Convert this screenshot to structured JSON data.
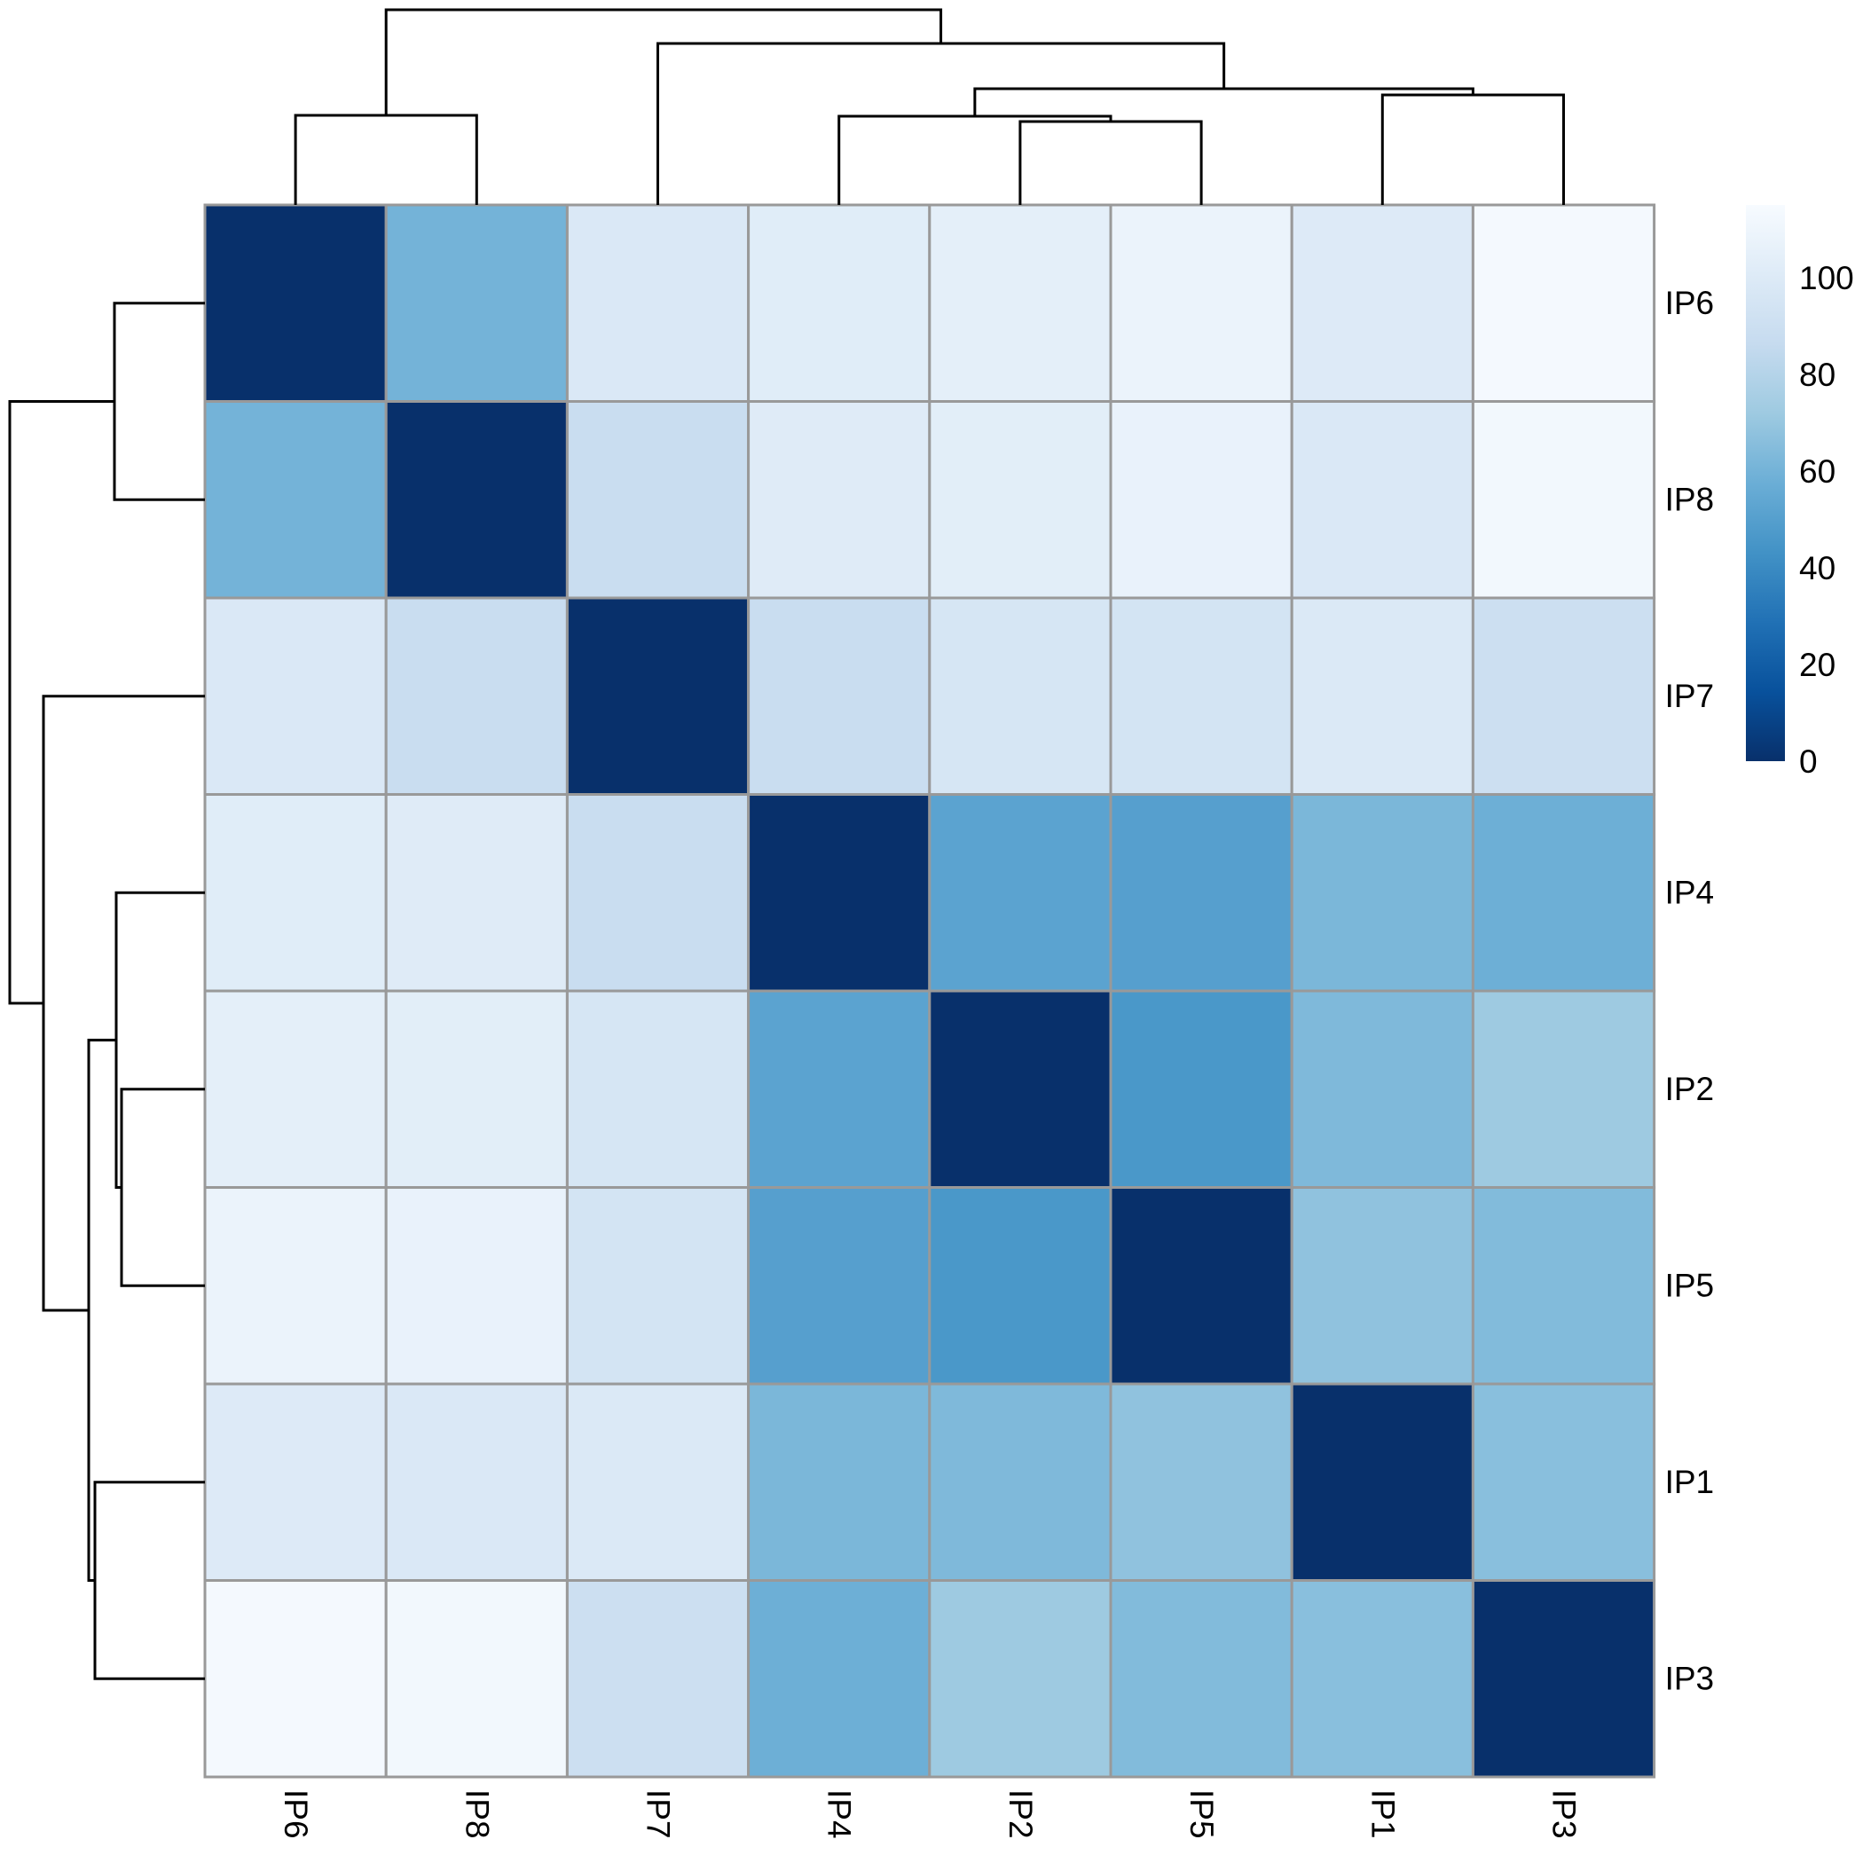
{
  "chart_data": {
    "type": "heatmap",
    "title": "",
    "xlabel": "",
    "ylabel": "",
    "columns": [
      "IP6",
      "IP8",
      "IP7",
      "IP4",
      "IP2",
      "IP5",
      "IP1",
      "IP3"
    ],
    "rows": [
      "IP6",
      "IP8",
      "IP7",
      "IP4",
      "IP2",
      "IP5",
      "IP1",
      "IP3"
    ],
    "values": [
      [
        0,
        60,
        98,
        102,
        104,
        108,
        100,
        113
      ],
      [
        60,
        0,
        88,
        101,
        103,
        107,
        98,
        112
      ],
      [
        98,
        88,
        0,
        88,
        96,
        94,
        99,
        90
      ],
      [
        102,
        101,
        88,
        0,
        52,
        50,
        62,
        58
      ],
      [
        104,
        103,
        96,
        52,
        0,
        46,
        63,
        72
      ],
      [
        108,
        107,
        94,
        50,
        46,
        0,
        68,
        64
      ],
      [
        100,
        98,
        99,
        62,
        63,
        68,
        0,
        66
      ],
      [
        113,
        112,
        90,
        58,
        72,
        64,
        66,
        0
      ]
    ],
    "color_scale": {
      "name": "Blues",
      "min": 0,
      "max": 115,
      "ticks": [
        0,
        20,
        40,
        60,
        80,
        100
      ],
      "tick_labels": [
        "0",
        "20",
        "40",
        "60",
        "80",
        "100"
      ],
      "colors": [
        "#08306b",
        "#08519c",
        "#2171b5",
        "#4292c6",
        "#6baed6",
        "#9ecae1",
        "#c6dbef",
        "#deebf7",
        "#f7fbff"
      ]
    },
    "cell_border_color": "#999999",
    "dendrogram_color": "#000000",
    "legend_position": "right"
  }
}
